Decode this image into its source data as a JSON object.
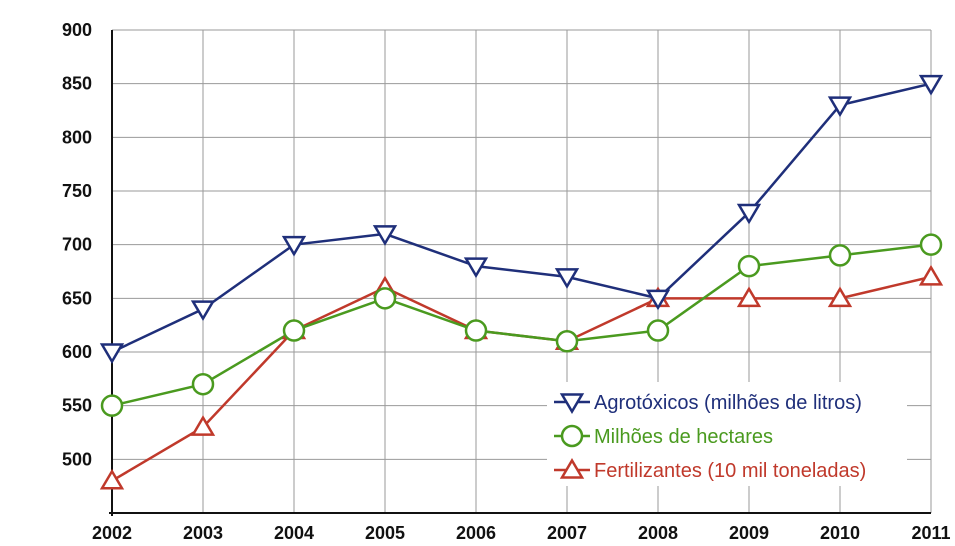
{
  "chart_data": {
    "type": "line",
    "title": "",
    "xlabel": "",
    "ylabel": "",
    "x": [
      "2002",
      "2003",
      "2004",
      "2005",
      "2006",
      "2007",
      "2008",
      "2009",
      "2010",
      "2011"
    ],
    "ylim": [
      450,
      900
    ],
    "yticks": [
      900,
      850,
      800,
      750,
      700,
      650,
      600,
      550,
      500
    ],
    "grid": true,
    "legend_position": "bottom-right",
    "series": [
      {
        "name": "Agrotóxicos (milhões de litros)",
        "color": "#1f2f7a",
        "marker": "triangle-down",
        "values": [
          600,
          640,
          700,
          710,
          680,
          670,
          650,
          730,
          830,
          850
        ]
      },
      {
        "name": "Milhões de hectares",
        "color": "#4a9a1f",
        "marker": "circle",
        "values": [
          550,
          570,
          620,
          650,
          620,
          610,
          620,
          680,
          690,
          700
        ]
      },
      {
        "name": "Fertilizantes (10 mil toneladas)",
        "color": "#c0392b",
        "marker": "triangle-up",
        "values": [
          480,
          530,
          620,
          660,
          620,
          610,
          650,
          650,
          650,
          670
        ]
      }
    ]
  }
}
